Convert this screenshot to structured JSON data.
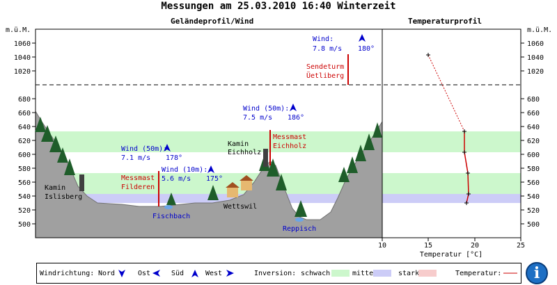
{
  "title": "Messungen am 25.03.2010 16:40 Winterzeit",
  "headers": {
    "profile": "Geländeprofil/Wind",
    "temperature": "Temperaturprofil"
  },
  "axis_unit": "m.ü.M.",
  "y_ticks_upper": [
    "1060",
    "1040",
    "1020"
  ],
  "y_ticks_lower": [
    "680",
    "660",
    "640",
    "620",
    "600",
    "580",
    "560",
    "540",
    "520",
    "500"
  ],
  "temp_axis": {
    "label": "Temperatur [°C]",
    "ticks": [
      "10",
      "15",
      "20",
      "25"
    ]
  },
  "labels": {
    "kamin_islisberg": [
      "Kamin",
      "Islisberg"
    ],
    "kamin_eichholz": [
      "Kamin",
      "Eichholz"
    ],
    "messmast_filderen": [
      "Messmast",
      "Filderen"
    ],
    "messmast_eichholz": [
      "Messmast",
      "Eichholz"
    ],
    "sendeturm": [
      "Sendeturm",
      "Üetliberg"
    ],
    "fischbach": "Fischbach",
    "wettswil": "Wettswil",
    "reppisch": "Reppisch"
  },
  "winds": {
    "filderen_50": {
      "label": "Wind (50m):",
      "speed": "7.1 m/s",
      "dir": "178°"
    },
    "filderen_10": {
      "label": "Wind (10m):",
      "speed": "5.6 m/s",
      "dir": "175°"
    },
    "eichholz_50": {
      "label": "Wind (50m):",
      "speed": "7.5 m/s",
      "dir": "186°"
    },
    "uetliberg": {
      "label": "Wind:",
      "speed": "7.8 m/s",
      "dir": "180°"
    }
  },
  "legend": {
    "wind_label": "Windrichtung:",
    "nord": "Nord",
    "ost": "Ost",
    "sued": "Süd",
    "west": "West",
    "inversion_label": "Inversion:",
    "schwach": "schwach",
    "mittel": "mittel",
    "stark": "stark",
    "temperatur": "Temperatur:"
  },
  "colors": {
    "schwach": "#ccf7cc",
    "mittel": "#ccccf7",
    "stark": "#f7cccc",
    "wind": "#0000cc",
    "mast": "#cc0000"
  },
  "info_icon": "i"
}
